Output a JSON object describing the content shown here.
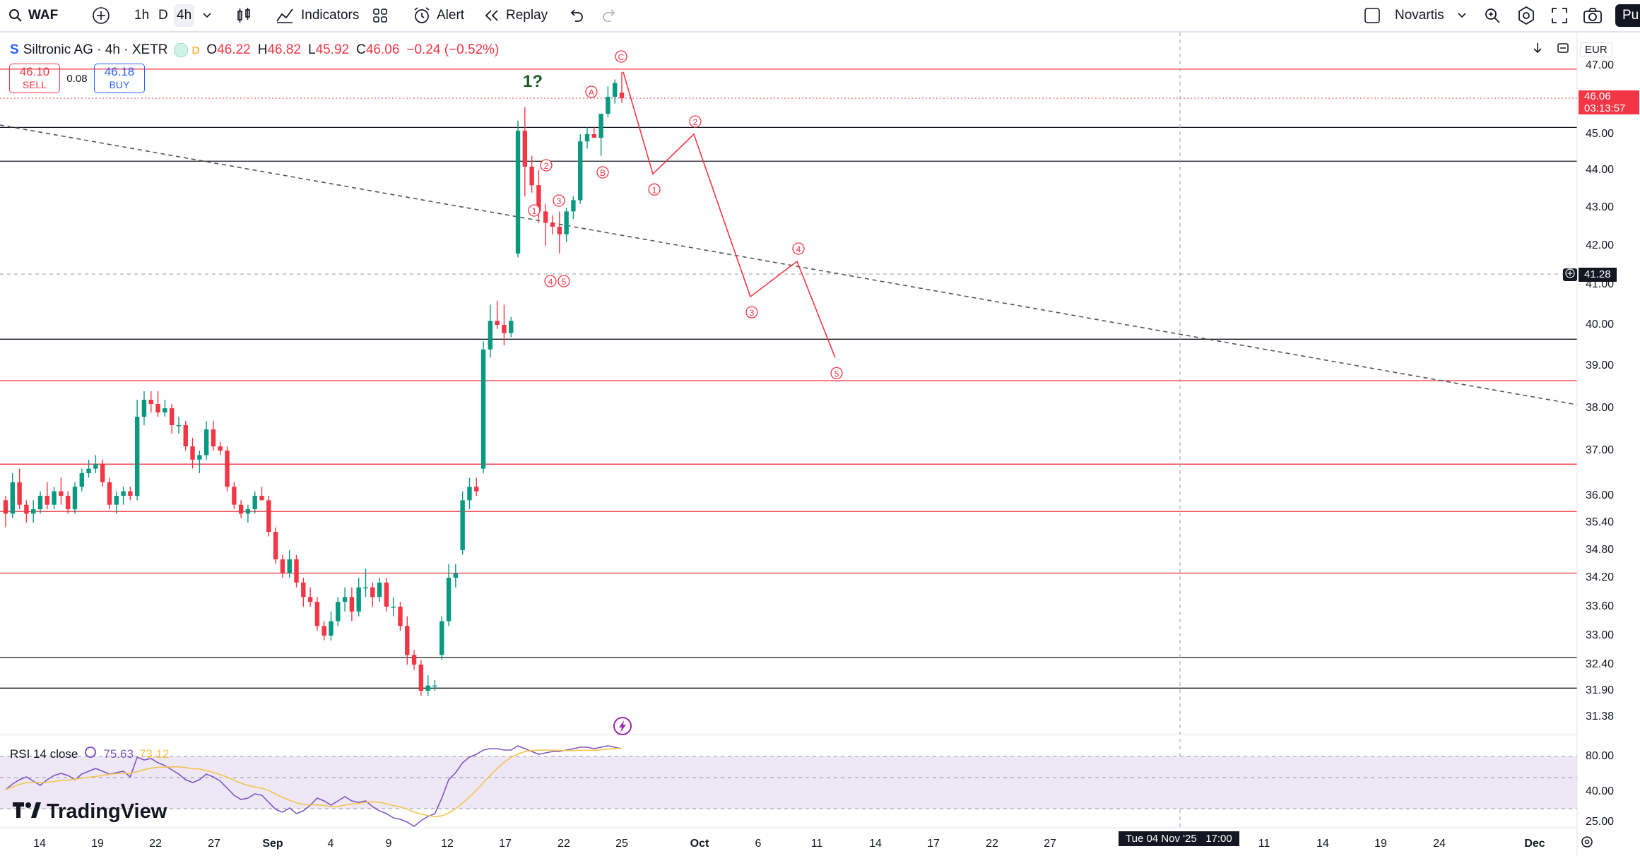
{
  "toolbar": {
    "symbol": "WAF",
    "intervals": [
      "1h",
      "D",
      "4h"
    ],
    "active_interval": "4h",
    "indicators_label": "Indicators",
    "alert_label": "Alert",
    "replay_label": "Replay",
    "watchlist": "Novartis",
    "publish_label": "Pu"
  },
  "legend": {
    "name": "Siltronic AG · 4h · XETR",
    "badge": "D",
    "open": "46.22",
    "high": "46.82",
    "low": "45.92",
    "close": "46.06",
    "change": "−0.24 (−0.52%)"
  },
  "trade": {
    "sell_price": "46.10",
    "sell_label": "SELL",
    "spread": "0.08",
    "buy_price": "46.18",
    "buy_label": "BUY"
  },
  "currency": "EUR",
  "last_price_tag": {
    "price": "46.06",
    "countdown": "03:13:57"
  },
  "crosshair_tag": "41.28",
  "crosshair_time": "Tue 04 Nov '25   17:00",
  "rsi": {
    "label": "RSI 14 close",
    "value": "75.63",
    "ma": "73.12",
    "levels": [
      "80.00",
      "40.00",
      "25.00"
    ]
  },
  "branding": "TradingView",
  "annotation": "1?",
  "colors": {
    "up": "#089981",
    "down": "#f23645",
    "wave": "#f23645",
    "rsi": "#7e57c2",
    "rsi_ma": "#f5c44c"
  },
  "chart_data": {
    "type": "candlestick",
    "y_ticks": [
      "47.00",
      "46.06",
      "45.00",
      "44.00",
      "43.00",
      "42.00",
      "41.00",
      "40.00",
      "39.00",
      "38.00",
      "37.00",
      "36.00",
      "35.40",
      "34.80",
      "34.20",
      "33.60",
      "33.00",
      "32.40",
      "31.90",
      "31.38"
    ],
    "x_ticks": [
      "14",
      "19",
      "22",
      "27",
      "Sep",
      "4",
      "9",
      "12",
      "17",
      "22",
      "25",
      "Oct",
      "6",
      "11",
      "14",
      "17",
      "22",
      "27",
      "11",
      "14",
      "19",
      "24",
      "Dec"
    ],
    "horizontal_levels_black": [
      45.2,
      44.25,
      39.65,
      32.55,
      31.95
    ],
    "horizontal_levels_red": [
      46.9,
      38.65,
      36.7,
      35.65,
      34.3
    ],
    "candles": [
      [
        35.9,
        36.0,
        35.3,
        35.6
      ],
      [
        35.6,
        36.5,
        35.5,
        36.3
      ],
      [
        36.3,
        36.6,
        35.7,
        35.8
      ],
      [
        35.8,
        35.9,
        35.4,
        35.6
      ],
      [
        35.6,
        35.9,
        35.4,
        35.7
      ],
      [
        35.7,
        36.1,
        35.6,
        36.0
      ],
      [
        36.0,
        36.3,
        35.7,
        35.8
      ],
      [
        35.8,
        36.2,
        35.7,
        36.1
      ],
      [
        36.1,
        36.4,
        35.8,
        36.0
      ],
      [
        36.0,
        36.1,
        35.6,
        35.7
      ],
      [
        35.7,
        36.3,
        35.6,
        36.2
      ],
      [
        36.2,
        36.6,
        36.1,
        36.5
      ],
      [
        36.5,
        36.8,
        36.4,
        36.6
      ],
      [
        36.6,
        36.9,
        36.5,
        36.7
      ],
      [
        36.7,
        36.8,
        36.2,
        36.3
      ],
      [
        36.3,
        36.4,
        35.7,
        35.8
      ],
      [
        35.8,
        36.1,
        35.6,
        36.0
      ],
      [
        36.0,
        36.2,
        35.8,
        36.1
      ],
      [
        36.1,
        36.2,
        35.9,
        36.0
      ],
      [
        36.0,
        38.2,
        35.9,
        37.8
      ],
      [
        37.8,
        38.4,
        37.6,
        38.2
      ],
      [
        38.2,
        38.4,
        37.9,
        38.1
      ],
      [
        38.1,
        38.4,
        37.8,
        37.9
      ],
      [
        37.9,
        38.2,
        37.8,
        38.0
      ],
      [
        38.0,
        38.1,
        37.4,
        37.6
      ],
      [
        37.6,
        37.8,
        37.4,
        37.6
      ],
      [
        37.6,
        37.7,
        37.0,
        37.1
      ],
      [
        37.1,
        37.3,
        36.6,
        36.8
      ],
      [
        36.8,
        37.0,
        36.5,
        36.9
      ],
      [
        36.9,
        37.7,
        36.8,
        37.5
      ],
      [
        37.5,
        37.7,
        37.0,
        37.1
      ],
      [
        37.1,
        37.2,
        36.9,
        37.0
      ],
      [
        37.0,
        37.1,
        36.1,
        36.2
      ],
      [
        36.2,
        36.3,
        35.7,
        35.8
      ],
      [
        35.8,
        35.9,
        35.5,
        35.6
      ],
      [
        35.6,
        35.8,
        35.4,
        35.7
      ],
      [
        35.7,
        36.1,
        35.6,
        36.0
      ],
      [
        36.0,
        36.2,
        35.9,
        35.9
      ],
      [
        35.9,
        36.0,
        35.1,
        35.2
      ],
      [
        35.2,
        35.3,
        34.5,
        34.6
      ],
      [
        34.6,
        34.7,
        34.2,
        34.3
      ],
      [
        34.3,
        34.8,
        34.2,
        34.6
      ],
      [
        34.6,
        34.7,
        34.0,
        34.1
      ],
      [
        34.1,
        34.2,
        33.6,
        33.8
      ],
      [
        33.8,
        34.0,
        33.6,
        33.7
      ],
      [
        33.7,
        33.8,
        33.1,
        33.2
      ],
      [
        33.2,
        33.3,
        32.9,
        33.0
      ],
      [
        33.0,
        33.5,
        32.9,
        33.3
      ],
      [
        33.3,
        33.8,
        33.2,
        33.7
      ],
      [
        33.7,
        34.0,
        33.5,
        33.8
      ],
      [
        33.8,
        34.0,
        33.3,
        33.5
      ],
      [
        33.5,
        34.2,
        33.4,
        34.0
      ],
      [
        34.0,
        34.4,
        33.8,
        34.0
      ],
      [
        34.0,
        34.1,
        33.6,
        33.8
      ],
      [
        33.8,
        34.2,
        33.7,
        34.1
      ],
      [
        34.1,
        34.2,
        33.5,
        33.6
      ],
      [
        33.6,
        33.8,
        33.4,
        33.6
      ],
      [
        33.6,
        33.7,
        33.1,
        33.2
      ],
      [
        33.2,
        33.4,
        32.4,
        32.6
      ],
      [
        32.6,
        32.7,
        32.3,
        32.4
      ],
      [
        32.4,
        32.5,
        31.8,
        31.9
      ],
      [
        31.9,
        32.2,
        31.8,
        32.0
      ],
      [
        32.0,
        32.1,
        31.9,
        32.0
      ],
      [
        32.6,
        33.4,
        32.5,
        33.3
      ],
      [
        33.3,
        34.5,
        33.2,
        34.2
      ],
      [
        34.2,
        34.5,
        34.0,
        34.3
      ],
      [
        34.8,
        36.1,
        34.7,
        35.9
      ],
      [
        35.9,
        36.4,
        35.7,
        36.2
      ],
      [
        36.2,
        36.4,
        36.0,
        36.1
      ],
      [
        36.6,
        39.6,
        36.5,
        39.4
      ],
      [
        39.4,
        40.5,
        39.2,
        40.1
      ],
      [
        40.1,
        40.6,
        39.9,
        40.0
      ],
      [
        40.0,
        40.5,
        39.5,
        39.8
      ],
      [
        39.8,
        40.2,
        39.7,
        40.1
      ],
      [
        41.8,
        45.4,
        41.7,
        45.1
      ],
      [
        45.1,
        45.8,
        43.3,
        44.1
      ],
      [
        44.1,
        44.4,
        43.4,
        43.6
      ],
      [
        43.6,
        44.0,
        42.6,
        42.9
      ],
      [
        42.9,
        43.1,
        42.0,
        42.6
      ],
      [
        42.6,
        42.8,
        42.3,
        42.5
      ],
      [
        42.5,
        42.9,
        41.8,
        42.3
      ],
      [
        42.3,
        43.0,
        42.1,
        42.9
      ],
      [
        42.9,
        43.3,
        42.7,
        43.2
      ],
      [
        43.2,
        45.0,
        43.1,
        44.8
      ],
      [
        44.8,
        45.2,
        44.6,
        45.0
      ],
      [
        45.0,
        45.2,
        44.9,
        44.9
      ],
      [
        44.9,
        45.6,
        44.4,
        45.6
      ],
      [
        45.6,
        46.4,
        45.5,
        46.1
      ],
      [
        46.1,
        46.6,
        45.9,
        46.5
      ],
      [
        46.22,
        46.82,
        45.92,
        46.06
      ]
    ],
    "wave_projection": [
      {
        "label": "1",
        "value": 43.9
      },
      {
        "label": "2",
        "value": 45.0
      },
      {
        "label": "3",
        "value": 40.7
      },
      {
        "label": "4",
        "value": 41.6
      },
      {
        "label": "5",
        "value": 39.2
      }
    ],
    "wave_labels_historical": [
      "1",
      "2",
      "3",
      "4",
      "5",
      "A",
      "B",
      "C"
    ]
  }
}
